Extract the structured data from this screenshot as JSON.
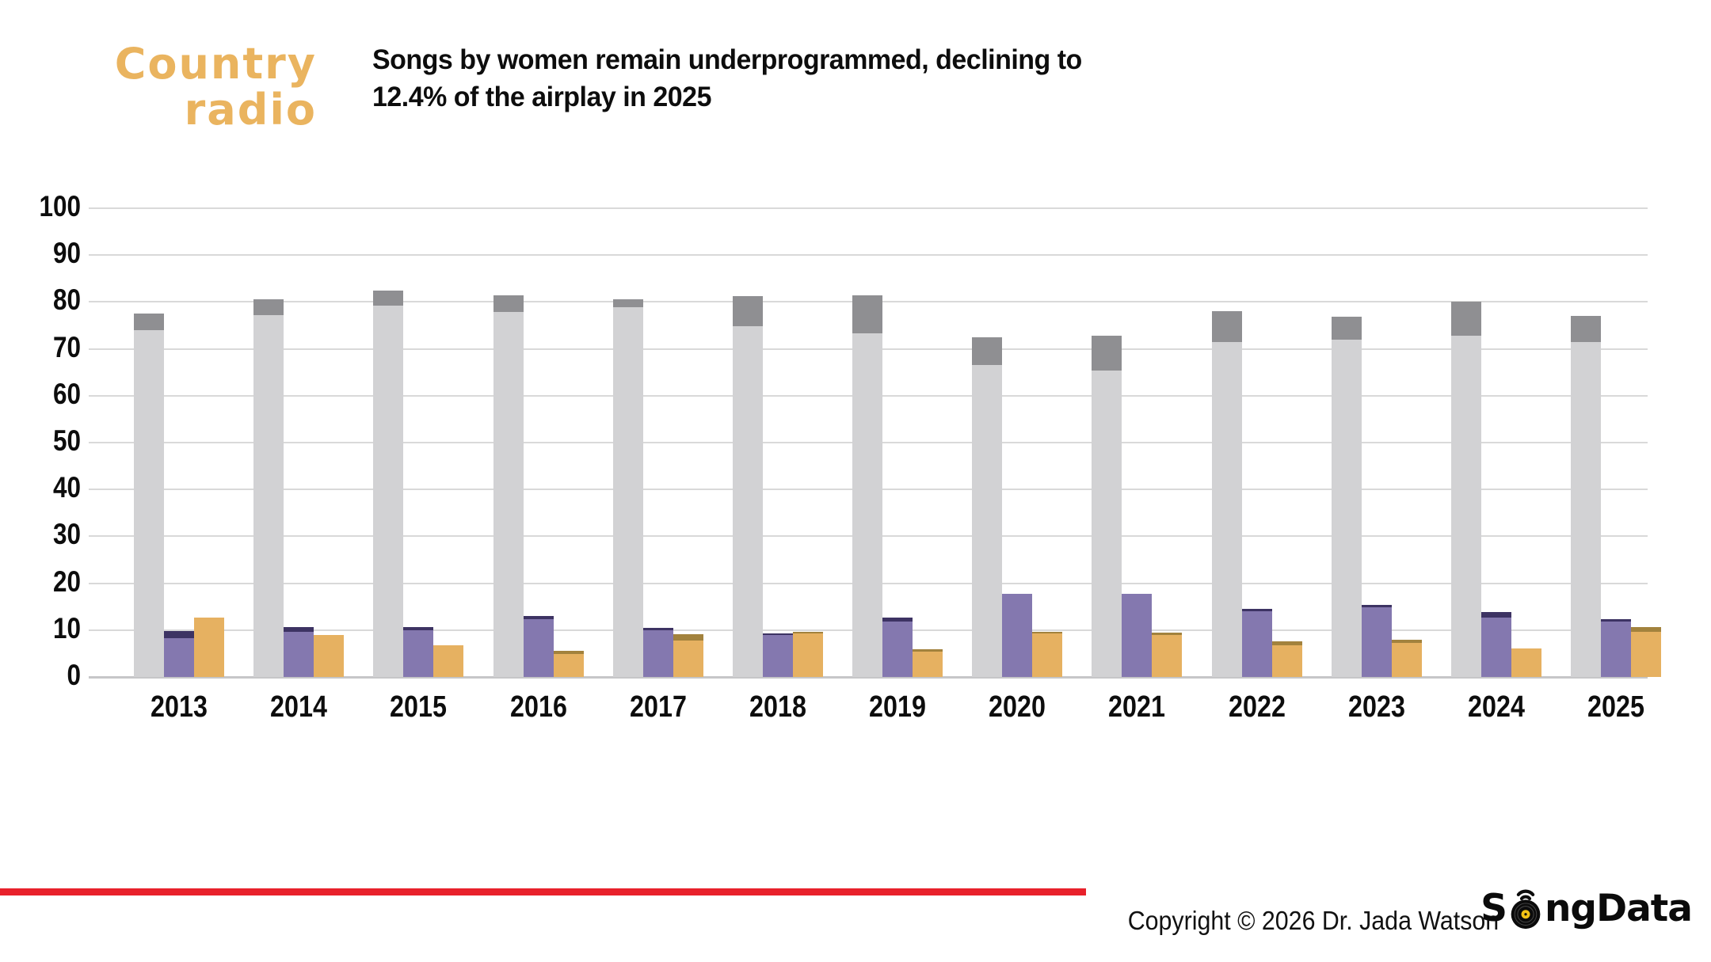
{
  "header": {
    "logo_line1": "Country",
    "logo_line2": "radio",
    "logo_color": "#eab45f",
    "title_line1": "Songs by women remain underprogrammed, declining to",
    "title_line2": "12.4% of the airplay in 2025"
  },
  "chart_data": {
    "type": "bar",
    "title": "Songs by women remain underprogrammed, declining to 12.4% of the airplay in 2025",
    "categories": [
      "2013",
      "2014",
      "2015",
      "2016",
      "2017",
      "2018",
      "2019",
      "2020",
      "2021",
      "2022",
      "2023",
      "2024",
      "2025"
    ],
    "ylim": [
      0,
      100
    ],
    "yticks": [
      0,
      10,
      20,
      30,
      40,
      50,
      60,
      70,
      80,
      90,
      100
    ],
    "grid": true,
    "legend_position": "none",
    "bar_groups": [
      {
        "name": "men",
        "segments": [
          {
            "name": "men-base",
            "color": "#d2d2d4",
            "values": [
              74.0,
              77.2,
              79.2,
              77.8,
              78.9,
              74.9,
              73.3,
              66.6,
              65.3,
              71.4,
              72.0,
              72.8,
              71.5
            ]
          },
          {
            "name": "men-cap",
            "color": "#8f8f92",
            "values": [
              3.5,
              3.3,
              3.3,
              3.7,
              1.6,
              6.3,
              8.2,
              5.9,
              7.5,
              6.7,
              4.8,
              7.2,
              5.5
            ]
          }
        ],
        "totals": [
          77.5,
          80.5,
          82.5,
          81.5,
          80.5,
          81.2,
          81.5,
          72.5,
          72.8,
          78.1,
          76.8,
          80.0,
          77.0
        ]
      },
      {
        "name": "women",
        "segments": [
          {
            "name": "women-base",
            "color": "#8478af",
            "values": [
              8.2,
              9.6,
              9.9,
              12.4,
              10.0,
              9.0,
              11.8,
              17.8,
              17.8,
              14.1,
              14.9,
              12.6,
              11.9
            ]
          },
          {
            "name": "women-cap",
            "color": "#3d3363",
            "values": [
              1.6,
              1.1,
              0.7,
              0.6,
              0.5,
              0.3,
              0.8,
              0,
              0,
              0.4,
              0.5,
              1.3,
              0.5
            ]
          }
        ],
        "totals": [
          9.8,
          10.7,
          10.6,
          13.0,
          10.5,
          9.3,
          12.6,
          17.8,
          17.8,
          14.5,
          15.4,
          13.9,
          12.4
        ]
      },
      {
        "name": "male-female-collaborations",
        "segments": [
          {
            "name": "collab-base",
            "color": "#e6b161",
            "values": [
              12.7,
              8.9,
              6.8,
              4.9,
              7.8,
              9.3,
              5.4,
              9.3,
              9.0,
              6.8,
              7.3,
              6.1,
              9.6
            ]
          },
          {
            "name": "collab-cap",
            "color": "#a2823d",
            "values": [
              0,
              0,
              0,
              0.6,
              1.4,
              0.3,
              0.5,
              0.4,
              0.4,
              0.8,
              0.7,
              0,
              1.0
            ]
          }
        ],
        "totals": [
          12.7,
          8.9,
          6.8,
          5.5,
          9.2,
          9.6,
          5.9,
          9.7,
          9.4,
          7.6,
          8.0,
          6.1,
          10.6
        ]
      }
    ]
  },
  "footer": {
    "divider_color": "#e8212b",
    "copyright": "Copyright © 2026 Dr. Jada Watson",
    "brand_s": "S",
    "brand_rest": "ngData",
    "brand_disc_center_color": "#f2c215"
  }
}
